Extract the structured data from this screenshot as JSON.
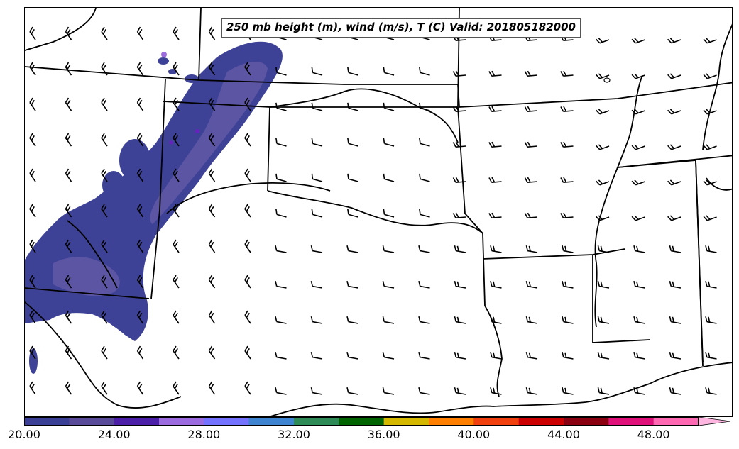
{
  "title": "250 mb height (m), wind (m/s), T (C) Valid: 201805182000",
  "colorbar": {
    "colors": [
      "#3b3f95",
      "#5a4a9a",
      "#4b1fa8",
      "#9d6be0",
      "#7373ff",
      "#3e84d0",
      "#2e8b57",
      "#006400",
      "#d4b800",
      "#ff8000",
      "#f04010",
      "#cc0000",
      "#8b0010",
      "#e0107a",
      "#ff69b4",
      "#ffb6e0"
    ],
    "tick_labels": [
      "20.00",
      "24.00",
      "28.00",
      "32.00",
      "36.00",
      "40.00",
      "44.00",
      "48.00"
    ],
    "min": 20,
    "max": 52,
    "step": 2
  },
  "shading": {
    "field_color": "#3e4296",
    "core_color": "#5b55a4",
    "accent_color": "#6a1fc0"
  }
}
